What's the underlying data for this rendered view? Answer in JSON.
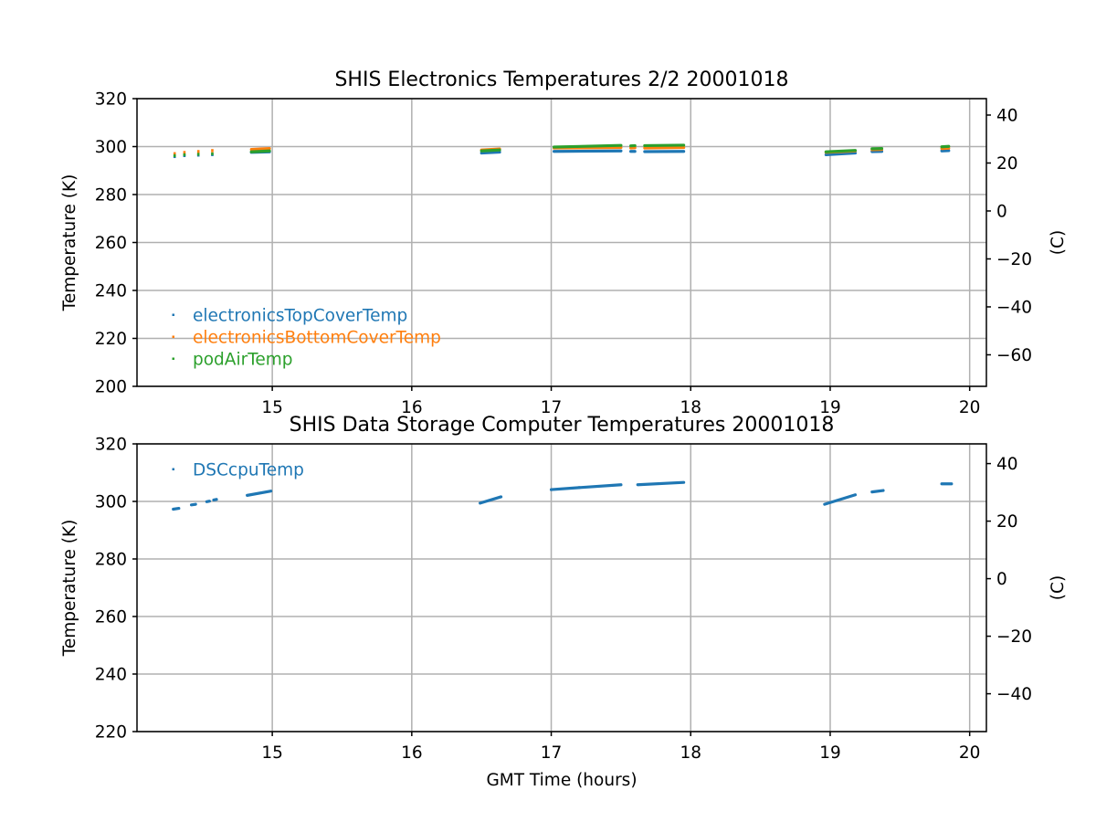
{
  "chart_data": [
    {
      "type": "scatter",
      "title": "SHIS Electronics Temperatures 2/2 20001018",
      "xlabel": "",
      "ylabel": "Temperature (K)",
      "y2label": "(C)",
      "xlim": [
        14.03,
        20.12
      ],
      "ylim": [
        200,
        320
      ],
      "y2lim": [
        -73.15,
        46.85
      ],
      "xticks": [
        15,
        16,
        17,
        18,
        19,
        20
      ],
      "yticks": [
        200,
        220,
        240,
        260,
        280,
        300,
        320
      ],
      "y2ticks": [
        -60,
        -40,
        -20,
        0,
        20,
        40
      ],
      "grid": true,
      "legend_position": "lower-left",
      "series": [
        {
          "name": "electronicsTopCoverTemp",
          "color": "#1f77b4",
          "segments": [
            [
              [
                14.3,
                295.6
              ],
              [
                14.3,
                296.0
              ]
            ],
            [
              [
                14.37,
                296.0
              ],
              [
                14.37,
                296.4
              ]
            ],
            [
              [
                14.47,
                296.2
              ],
              [
                14.47,
                296.6
              ]
            ],
            [
              [
                14.57,
                296.4
              ],
              [
                14.57,
                296.8
              ]
            ],
            [
              [
                14.85,
                297.6
              ],
              [
                14.98,
                297.8
              ]
            ],
            [
              [
                16.5,
                297.3
              ],
              [
                16.63,
                297.7
              ]
            ],
            [
              [
                17.02,
                298.0
              ],
              [
                17.5,
                298.2
              ]
            ],
            [
              [
                17.57,
                298.0
              ],
              [
                17.6,
                298.0
              ]
            ],
            [
              [
                17.67,
                297.9
              ],
              [
                17.95,
                298.0
              ]
            ],
            [
              [
                18.97,
                296.6
              ],
              [
                19.18,
                297.3
              ]
            ],
            [
              [
                19.3,
                297.9
              ],
              [
                19.37,
                298.0
              ]
            ],
            [
              [
                19.8,
                298.2
              ],
              [
                19.85,
                298.3
              ]
            ]
          ]
        },
        {
          "name": "electronicsBottomCoverTemp",
          "color": "#ff7f0e",
          "segments": [
            [
              [
                14.3,
                296.8
              ],
              [
                14.3,
                297.3
              ]
            ],
            [
              [
                14.37,
                297.2
              ],
              [
                14.37,
                297.8
              ]
            ],
            [
              [
                14.47,
                297.6
              ],
              [
                14.47,
                298.2
              ]
            ],
            [
              [
                14.57,
                298.0
              ],
              [
                14.57,
                298.6
              ]
            ],
            [
              [
                14.85,
                298.8
              ],
              [
                14.98,
                299.2
              ]
            ],
            [
              [
                16.5,
                298.6
              ],
              [
                16.63,
                299.0
              ]
            ],
            [
              [
                17.02,
                299.4
              ],
              [
                17.5,
                299.6
              ]
            ],
            [
              [
                17.57,
                299.4
              ],
              [
                17.6,
                299.5
              ]
            ],
            [
              [
                17.67,
                299.4
              ],
              [
                17.95,
                299.6
              ]
            ],
            [
              [
                18.97,
                297.6
              ],
              [
                19.18,
                298.2
              ]
            ],
            [
              [
                19.3,
                298.7
              ],
              [
                19.37,
                298.8
              ]
            ],
            [
              [
                19.8,
                299.2
              ],
              [
                19.85,
                299.3
              ]
            ]
          ]
        },
        {
          "name": "podAirTemp",
          "color": "#2ca02c",
          "segments": [
            [
              [
                14.3,
                296.0
              ],
              [
                14.3,
                296.4
              ]
            ],
            [
              [
                14.37,
                296.4
              ],
              [
                14.37,
                296.8
              ]
            ],
            [
              [
                14.47,
                296.6
              ],
              [
                14.47,
                297.0
              ]
            ],
            [
              [
                14.57,
                296.8
              ],
              [
                14.57,
                297.2
              ]
            ],
            [
              [
                14.85,
                297.8
              ],
              [
                14.98,
                298.2
              ]
            ],
            [
              [
                16.5,
                298.2
              ],
              [
                16.63,
                298.6
              ]
            ],
            [
              [
                17.02,
                299.8
              ],
              [
                17.5,
                300.5
              ]
            ],
            [
              [
                17.57,
                300.3
              ],
              [
                17.6,
                300.4
              ]
            ],
            [
              [
                17.67,
                300.4
              ],
              [
                17.95,
                300.6
              ]
            ],
            [
              [
                18.97,
                297.8
              ],
              [
                19.18,
                298.4
              ]
            ],
            [
              [
                19.3,
                299.1
              ],
              [
                19.37,
                299.2
              ]
            ],
            [
              [
                19.8,
                299.9
              ],
              [
                19.85,
                300.1
              ]
            ]
          ]
        }
      ]
    },
    {
      "type": "scatter",
      "title": "SHIS Data Storage Computer Temperatures 20001018",
      "xlabel": "GMT Time (hours)",
      "ylabel": "Temperature (K)",
      "y2label": "(C)",
      "xlim": [
        14.03,
        20.12
      ],
      "ylim": [
        220,
        320
      ],
      "y2lim": [
        -53.15,
        46.85
      ],
      "xticks": [
        15,
        16,
        17,
        18,
        19,
        20
      ],
      "yticks": [
        220,
        240,
        260,
        280,
        300,
        320
      ],
      "y2ticks": [
        -40,
        -20,
        0,
        20,
        40
      ],
      "grid": true,
      "legend_position": "top-left",
      "series": [
        {
          "name": "DSCcpuTemp",
          "color": "#1f77b4",
          "segments": [
            [
              [
                14.29,
                297.3
              ],
              [
                14.33,
                297.6
              ]
            ],
            [
              [
                14.42,
                298.8
              ],
              [
                14.45,
                299.0
              ]
            ],
            [
              [
                14.53,
                299.9
              ],
              [
                14.55,
                300.1
              ]
            ],
            [
              [
                14.58,
                300.5
              ],
              [
                14.6,
                300.7
              ]
            ],
            [
              [
                14.82,
                302.1
              ],
              [
                14.99,
                303.6
              ]
            ],
            [
              [
                16.49,
                299.4
              ],
              [
                16.64,
                301.6
              ]
            ],
            [
              [
                17.0,
                304.1
              ],
              [
                17.2,
                304.8
              ]
            ],
            [
              [
                17.2,
                304.8
              ],
              [
                17.5,
                305.8
              ]
            ],
            [
              [
                17.62,
                305.8
              ],
              [
                17.95,
                306.6
              ]
            ],
            [
              [
                18.96,
                299.0
              ],
              [
                19.18,
                302.3
              ]
            ],
            [
              [
                19.3,
                303.3
              ],
              [
                19.38,
                303.8
              ]
            ],
            [
              [
                19.8,
                306.1
              ],
              [
                19.87,
                306.1
              ]
            ]
          ]
        }
      ]
    }
  ]
}
